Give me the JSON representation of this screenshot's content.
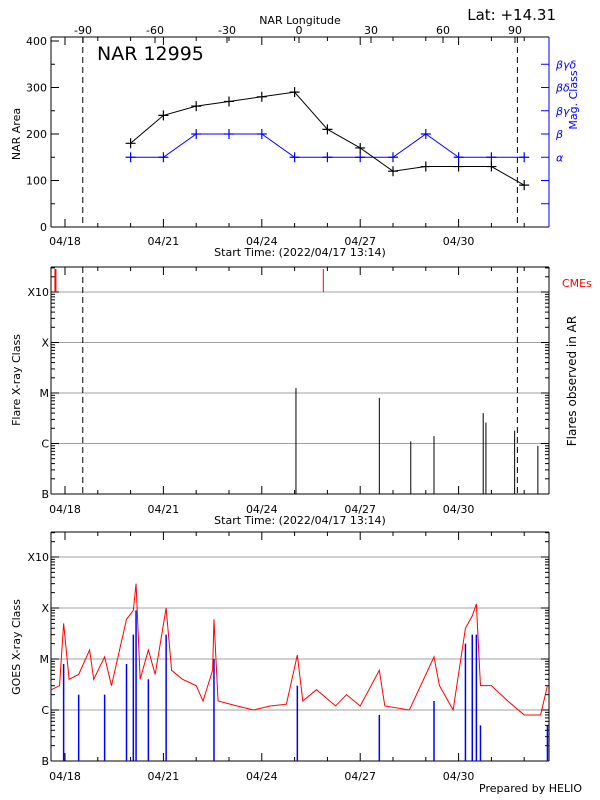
{
  "colors": {
    "area": "#000000",
    "mag_class": "#0000ff",
    "cme": "#ff0000",
    "goes_long": "#ff0000",
    "goes_short": "#0000ff",
    "grid": "#a0a0a0"
  },
  "footer": "Prepared by HELIO",
  "chart_data": [
    {
      "type": "line",
      "title": "NAR 12995",
      "latitude_label": "Lat: +14.31",
      "top_axis_label": "NAR Longitude",
      "top_ticks": [
        "-90",
        "-60",
        "-30",
        "0",
        "30",
        "60",
        "90"
      ],
      "xlabel": "Start Time: (2022/04/17 13:14)",
      "x_ticks": [
        "04/18",
        "04/21",
        "04/24",
        "04/27",
        "04/30"
      ],
      "ylabel": "NAR Area",
      "ylim": [
        0,
        400
      ],
      "y_ticks": [
        "0",
        "100",
        "200",
        "300",
        "400"
      ],
      "y2label": "Mag. Class",
      "y2_ticks": [
        "α",
        "β",
        "βγ",
        "βδ",
        "βγδ"
      ],
      "limb_markers": [
        "2022-04-18 13:00",
        "2022-05-01 19:00"
      ],
      "x": [
        "2022-04-20",
        "2022-04-21",
        "2022-04-22",
        "2022-04-23",
        "2022-04-24",
        "2022-04-25",
        "2022-04-26",
        "2022-04-27",
        "2022-04-28",
        "2022-04-29",
        "2022-04-30",
        "2022-05-01",
        "2022-05-02"
      ],
      "series": [
        {
          "name": "NAR Area",
          "values": [
            180,
            240,
            260,
            270,
            280,
            290,
            210,
            170,
            120,
            130,
            130,
            130,
            90
          ]
        },
        {
          "name": "Mag. Class",
          "values": [
            "α",
            "α",
            "β",
            "β",
            "β",
            "α",
            "α",
            "α",
            "α",
            "β",
            "α",
            "α",
            "α"
          ]
        }
      ]
    },
    {
      "type": "bar",
      "xlabel": "Start Time: (2022/04/17 13:14)",
      "x_ticks": [
        "04/18",
        "04/21",
        "04/24",
        "04/27",
        "04/30"
      ],
      "ylabel": "Flare X-ray Class",
      "y_ticks": [
        "B",
        "C",
        "M",
        "X",
        "X10"
      ],
      "y2label": "Flares observed in AR",
      "cme_label": "CMEs",
      "cmes": [
        "2022-04-17 17:00",
        "2022-04-25 21:00"
      ],
      "limb_markers": [
        "2022-04-18 13:00",
        "2022-05-01 19:00"
      ],
      "flares": [
        {
          "time": "2022-04-25 01:00",
          "flux": 1.25e-05
        },
        {
          "time": "2022-04-27 14:00",
          "flux": 8e-06
        },
        {
          "time": "2022-04-28 13:00",
          "flux": 1.1e-06
        },
        {
          "time": "2022-04-29 06:00",
          "flux": 1.4e-06
        },
        {
          "time": "2022-04-30 18:00",
          "flux": 4e-06
        },
        {
          "time": "2022-04-30 20:00",
          "flux": 2.6e-06
        },
        {
          "time": "2022-05-01 17:00",
          "flux": 1.8e-06
        },
        {
          "time": "2022-05-02 10:00",
          "flux": 9e-07
        }
      ]
    },
    {
      "type": "line",
      "x_ticks": [
        "04/18",
        "04/21",
        "04/24",
        "04/27",
        "04/30"
      ],
      "ylabel": "GOES X-ray Class",
      "y_ticks": [
        "B",
        "C",
        "M",
        "X",
        "X10"
      ],
      "series": [
        {
          "values": [
            [
              "2022-04-17 14:00",
              2.5e-06
            ],
            [
              "2022-04-17 20:00",
              3e-06
            ],
            [
              "2022-04-17 23:00",
              5e-05
            ],
            [
              "2022-04-18 03:00",
              4e-06
            ],
            [
              "2022-04-18 10:00",
              5e-06
            ],
            [
              "2022-04-18 18:00",
              1.5e-05
            ],
            [
              "2022-04-18 21:00",
              4e-06
            ],
            [
              "2022-04-19 05:00",
              1.1e-05
            ],
            [
              "2022-04-19 10:00",
              3e-06
            ],
            [
              "2022-04-19 21:00",
              6e-05
            ],
            [
              "2022-04-20 02:00",
              9e-05
            ],
            [
              "2022-04-20 04:00",
              0.0003
            ],
            [
              "2022-04-20 07:00",
              4e-06
            ],
            [
              "2022-04-20 13:00",
              1.5e-05
            ],
            [
              "2022-04-20 18:00",
              5e-06
            ],
            [
              "2022-04-21 02:00",
              0.0001
            ],
            [
              "2022-04-21 06:00",
              6e-06
            ],
            [
              "2022-04-21 14:00",
              4e-06
            ],
            [
              "2022-04-22 00:00",
              3e-06
            ],
            [
              "2022-04-22 05:00",
              1.5e-06
            ],
            [
              "2022-04-22 12:00",
              6e-06
            ],
            [
              "2022-04-22 13:00",
              6e-05
            ],
            [
              "2022-04-22 16:00",
              1.5e-06
            ],
            [
              "2022-04-23 06:00",
              1.2e-06
            ],
            [
              "2022-04-23 18:00",
              1e-06
            ],
            [
              "2022-04-24 06:00",
              1.2e-06
            ],
            [
              "2022-04-24 18:00",
              1.3e-06
            ],
            [
              "2022-04-25 02:00",
              1.2e-05
            ],
            [
              "2022-04-25 06:00",
              1.5e-06
            ],
            [
              "2022-04-25 16:00",
              2.5e-06
            ],
            [
              "2022-04-26 06:00",
              1.2e-06
            ],
            [
              "2022-04-26 14:00",
              2e-06
            ],
            [
              "2022-04-27 00:00",
              1.2e-06
            ],
            [
              "2022-04-27 14:00",
              6e-06
            ],
            [
              "2022-04-27 18:00",
              1.2e-06
            ],
            [
              "2022-04-28 12:00",
              1e-06
            ],
            [
              "2022-04-29 06:00",
              1.1e-05
            ],
            [
              "2022-04-29 10:00",
              3e-06
            ],
            [
              "2022-04-29 20:00",
              1e-06
            ],
            [
              "2022-04-30 05:00",
              4e-05
            ],
            [
              "2022-04-30 10:00",
              7e-05
            ],
            [
              "2022-04-30 13:00",
              0.00012
            ],
            [
              "2022-04-30 16:00",
              3e-06
            ],
            [
              "2022-05-01 00:00",
              3e-06
            ],
            [
              "2022-05-01 12:00",
              1.5e-06
            ],
            [
              "2022-05-02 00:00",
              8e-07
            ],
            [
              "2022-05-02 12:00",
              8e-07
            ],
            [
              "2022-05-02 17:00",
              3e-06
            ]
          ]
        },
        {
          "values": [
            [
              "2022-04-17 23:00",
              8e-06
            ],
            [
              "2022-04-18 10:00",
              2e-06
            ],
            [
              "2022-04-19 05:00",
              2e-06
            ],
            [
              "2022-04-19 21:00",
              8e-06
            ],
            [
              "2022-04-20 02:00",
              3e-05
            ],
            [
              "2022-04-20 04:00",
              9e-05
            ],
            [
              "2022-04-20 13:00",
              4e-06
            ],
            [
              "2022-04-21 02:00",
              3e-05
            ],
            [
              "2022-04-22 13:00",
              1e-05
            ],
            [
              "2022-04-25 02:00",
              3e-06
            ],
            [
              "2022-04-27 14:00",
              8e-07
            ],
            [
              "2022-04-29 06:00",
              1.5e-06
            ],
            [
              "2022-04-30 05:00",
              2e-05
            ],
            [
              "2022-04-30 10:00",
              3e-05
            ],
            [
              "2022-04-30 13:00",
              3e-05
            ],
            [
              "2022-04-30 16:00",
              5e-07
            ],
            [
              "2022-05-02 17:00",
              5e-07
            ]
          ]
        }
      ]
    }
  ]
}
